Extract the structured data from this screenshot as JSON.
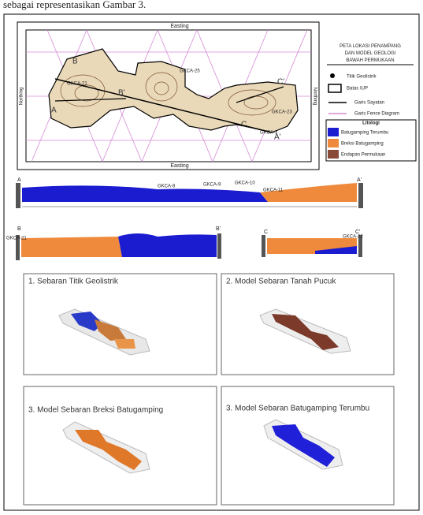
{
  "caption_top": "sebagai representasikan Gambar 3.",
  "map": {
    "title": "PETA LOKASI PENAMPANG DAN MODEL GEOLOGI BAWAH PERMUKAAN",
    "x_axis_label": "Easting",
    "y_axis_label": "Northing",
    "section_labels": [
      "A",
      "A'",
      "B",
      "B'",
      "C",
      "C'"
    ],
    "point_labels": [
      "GKCA-25",
      "GKCA-21",
      "GKCA-23",
      "GKCA-3"
    ]
  },
  "legend": {
    "items": [
      "Titik Geolistrik",
      "Batas IUP",
      "Garis Sayatan",
      "Garis Fence Diagram"
    ],
    "lithology_title": "Litologi",
    "lithology": [
      "Batugamping Terumbu",
      "Breksi Batugamping",
      "Endapan Permukaan"
    ]
  },
  "sections": [
    {
      "start": "A",
      "end": "A'",
      "points": [
        "GKCA-8",
        "GKCA-9",
        "GKCA-10",
        "GKCA-11"
      ]
    },
    {
      "start": "B",
      "end": "B'",
      "points": [
        "GKCA-21"
      ]
    },
    {
      "start": "C",
      "end": "C'",
      "points": [
        "GKCA-22"
      ]
    }
  ],
  "panels": [
    "1. Sebaran Titik Geolistrik",
    "2. Model Sebaran Tanah Pucuk",
    "3. Model Sebaran Breksi Batugamping",
    "3. Model Sebaran Batugamping Terumbu"
  ]
}
